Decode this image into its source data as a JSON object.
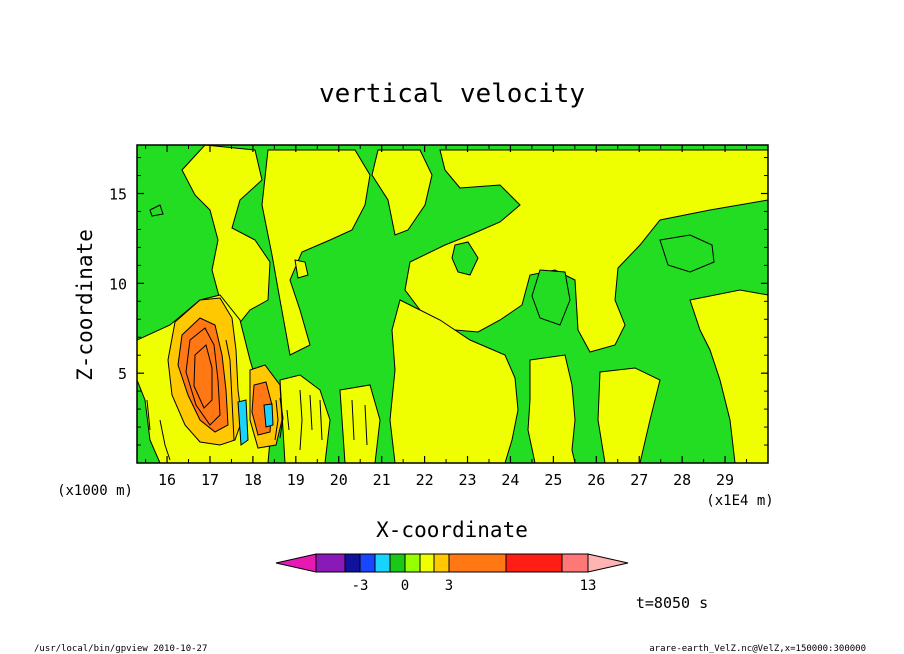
{
  "chart_data": {
    "type": "heatmap",
    "title": "vertical velocity",
    "xlabel": "X-coordinate",
    "ylabel": "Z-coordinate",
    "x_unit": "(x1E4 m)",
    "y_unit": "(x1000 m)",
    "xlim": [
      15.3,
      30.0
    ],
    "ylim": [
      0.0,
      17.7
    ],
    "x_ticks": [
      "16",
      "17",
      "18",
      "19",
      "20",
      "21",
      "22",
      "23",
      "24",
      "25",
      "26",
      "27",
      "28",
      "29"
    ],
    "y_ticks": [
      "5",
      "10",
      "15"
    ],
    "colorbar": {
      "levels": [
        -5,
        -4,
        -3,
        -2,
        -1,
        0,
        1,
        2,
        3,
        5,
        10,
        13
      ],
      "tick_labels": [
        "-3",
        "0",
        "3",
        "13"
      ],
      "colors": [
        "#e619b3",
        "#8a1ab8",
        "#10129c",
        "#1946ff",
        "#19d3ff",
        "#19c819",
        "#96ff00",
        "#f0ff00",
        "#ffc800",
        "#ff7814",
        "#ff1e14",
        "#ff7878",
        "#ffb4b4"
      ]
    },
    "field_colors": {
      "background_negative": "#22dd22",
      "positive": "#f0ff00",
      "moderate": "#ffc800",
      "strong": "#ff7814",
      "downdraft": "#19d3ff"
    },
    "annotation": "t=8050 s"
  },
  "footer": {
    "left": "/usr/local/bin/gpview  2010-10-27",
    "right": "arare-earth_VelZ.nc@VelZ,x=150000:300000"
  }
}
